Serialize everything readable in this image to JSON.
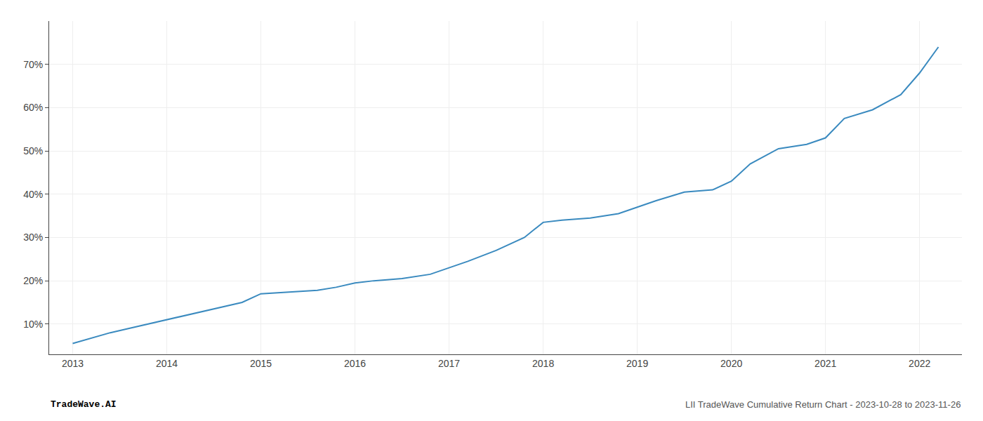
{
  "chart_data": {
    "type": "line",
    "x": [
      2013.0,
      2013.08,
      2013.2,
      2013.4,
      2013.6,
      2013.8,
      2014.0,
      2014.2,
      2014.5,
      2014.8,
      2015.0,
      2015.2,
      2015.4,
      2015.6,
      2015.8,
      2016.0,
      2016.2,
      2016.5,
      2016.8,
      2017.0,
      2017.05,
      2017.2,
      2017.5,
      2017.8,
      2018.0,
      2018.2,
      2018.5,
      2018.8,
      2019.0,
      2019.2,
      2019.5,
      2019.8,
      2020.0,
      2020.2,
      2020.5,
      2020.8,
      2021.0,
      2021.2,
      2021.5,
      2021.8,
      2022.0,
      2022.2
    ],
    "values": [
      5.5,
      6.0,
      6.8,
      8.0,
      9.0,
      10.0,
      11.0,
      12.0,
      13.5,
      15.0,
      17.0,
      17.3,
      17.5,
      17.8,
      18.5,
      19.5,
      20.0,
      20.5,
      21.5,
      23.0,
      23.5,
      24.5,
      27.0,
      30.0,
      33.5,
      34.0,
      34.5,
      35.5,
      37.0,
      38.5,
      40.5,
      41.0,
      43.0,
      47.0,
      50.5,
      51.5,
      53.0,
      57.5,
      59.5,
      63.0,
      68.0,
      74.0
    ],
    "color": "#3a8abf",
    "xlim": [
      2012.75,
      2022.45
    ],
    "xticks": [
      2013,
      2014,
      2015,
      2016,
      2017,
      2018,
      2019,
      2020,
      2021,
      2022
    ],
    "ylim": [
      3.0,
      80.0
    ],
    "yticks": [
      {
        "value": 10,
        "label": "10%"
      },
      {
        "value": 20,
        "label": "20%"
      },
      {
        "value": 30,
        "label": "30%"
      },
      {
        "value": 40,
        "label": "40%"
      },
      {
        "value": 50,
        "label": "50%"
      },
      {
        "value": 60,
        "label": "60%"
      },
      {
        "value": 70,
        "label": "70%"
      }
    ],
    "grid": true,
    "annotations": [
      "TradeWave.AI",
      "LII TradeWave Cumulative Return Chart - 2023-10-28 to 2023-11-26"
    ]
  }
}
